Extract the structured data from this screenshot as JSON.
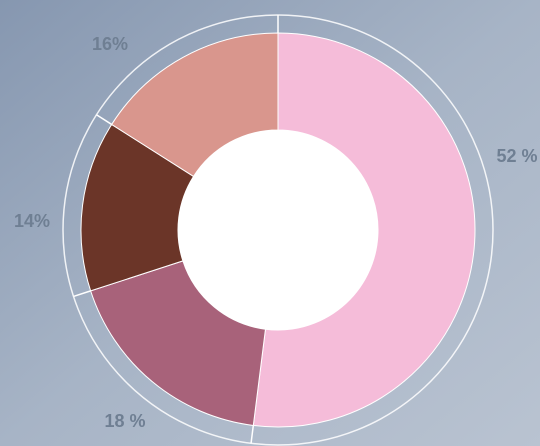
{
  "chart_data": {
    "type": "donut",
    "values": [
      52,
      18,
      14,
      16
    ],
    "value_labels": [
      "52 %",
      "18 %",
      "14%",
      "16%"
    ],
    "colors": [
      "#f5bcd9",
      "#a8627a",
      "#6b3528",
      "#d9968d"
    ]
  }
}
